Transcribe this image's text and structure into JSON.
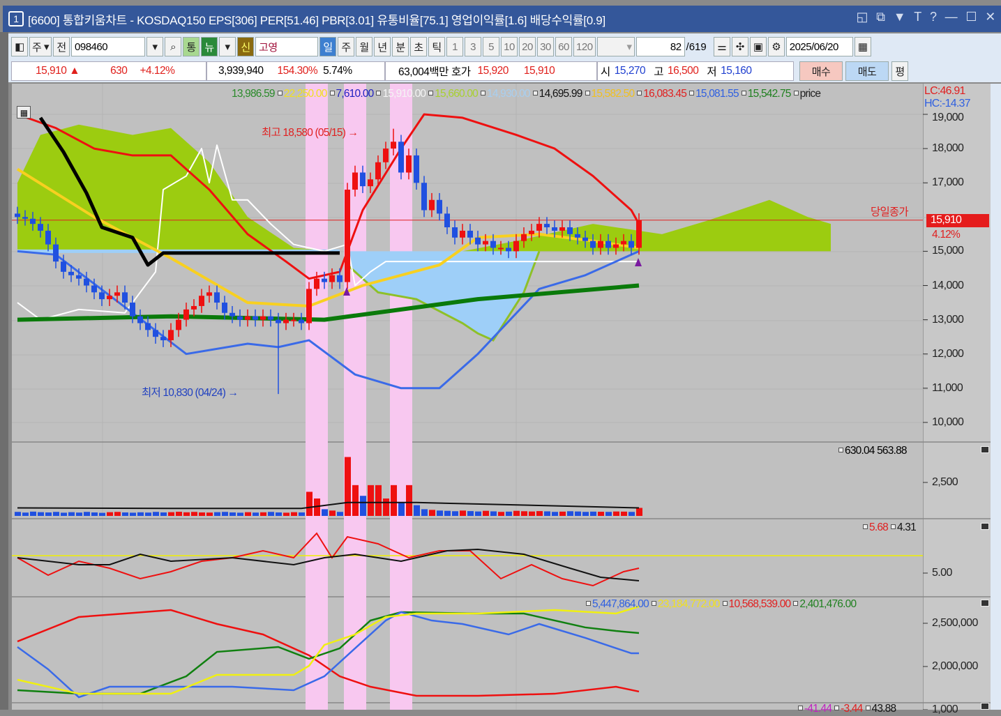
{
  "window": {
    "number": "1",
    "title": "[6600] 통합키움차트 - KOSDAQ150 EPS[306] PER[51.46] PBR[3.01] 유통비율[75.1] 영업이익률[1.6] 배당수익률[0.9]",
    "buttons": [
      "◱",
      "⧉",
      "▼",
      "T",
      "?",
      "—",
      "☐",
      "✕"
    ]
  },
  "toolbar": {
    "market": "주",
    "prev": "전",
    "code": "098460",
    "tong": "통",
    "nyu": "뉴",
    "sin": "신",
    "name": "고영",
    "periods": [
      "일",
      "주",
      "월",
      "년",
      "분",
      "초",
      "틱"
    ],
    "selected_period": "일",
    "intervals": [
      "1",
      "3",
      "5",
      "10",
      "20",
      "30",
      "60",
      "120"
    ],
    "count": "82",
    "total": "/619",
    "date": "2025/06/20"
  },
  "quote": {
    "price": "15,910 ▲",
    "change": "630",
    "pct": "+4.12%",
    "volume": "3,939,940",
    "vol_ratio": "154.30%",
    "turnover": "5.74%",
    "amount": "63,004백만",
    "hoga_label": "호가",
    "ask": "15,920",
    "bid": "15,910",
    "open_label": "시",
    "open": "15,270",
    "high_label": "고",
    "high": "16,500",
    "low_label": "저",
    "low": "15,160",
    "buy": "매수",
    "sell": "매도",
    "eval": "평"
  },
  "legend": {
    "price": [
      {
        "text": "13,986.59",
        "color": "#2a8a2a"
      },
      {
        "text": "22,250.00",
        "color": "#f0e020"
      },
      {
        "text": "7,610.00",
        "color": "#2020c0"
      },
      {
        "text": "15,910.00",
        "color": "#f4f4f4"
      },
      {
        "text": "15,660.00",
        "color": "#a8d030"
      },
      {
        "text": "14,930.00",
        "color": "#a8cff0"
      },
      {
        "text": "14,695.99",
        "color": "#111111"
      },
      {
        "text": "15,582.50",
        "color": "#f0c020"
      },
      {
        "text": "16,083.45",
        "color": "#e02020"
      },
      {
        "text": "15,081.55",
        "color": "#3060e0"
      },
      {
        "text": "15,542.75",
        "color": "#208020"
      },
      {
        "text": "price",
        "color": "#222222"
      }
    ],
    "lc": "LC:46.91",
    "hc": "HC:-14.37",
    "volume": "630.04 563.88",
    "ind2": [
      {
        "text": "5.68",
        "color": "#e02020"
      },
      {
        "text": "4.31",
        "color": "#111111"
      }
    ],
    "ind3": [
      {
        "text": "5,447,864.00",
        "color": "#3060e0"
      },
      {
        "text": "23,184,772.00",
        "color": "#f0e020"
      },
      {
        "text": "10,568,539.00",
        "color": "#e02020"
      },
      {
        "text": "2,401,476.00",
        "color": "#208020"
      }
    ],
    "ind4": [
      {
        "text": "-41.44",
        "color": "#c020c0"
      },
      {
        "text": "-3.44",
        "color": "#e02020"
      },
      {
        "text": "43.88",
        "color": "#111111"
      }
    ]
  },
  "annotations": {
    "high": "최고 18,580 (05/15) →",
    "low": "최저 10,830 (04/24) →",
    "close_label": "당일종가",
    "close_price": "15,910",
    "close_pct": "4.12%"
  },
  "axes": {
    "price": [
      "19,000",
      "18,000",
      "17,000",
      "16,000",
      "15,000",
      "14,000",
      "13,000",
      "12,000",
      "11,000",
      "10,000"
    ],
    "volume": [
      "2,500"
    ],
    "ind2": [
      "5.00"
    ],
    "ind3": [
      "2,500,000",
      "2,000,000"
    ],
    "ind4": [
      "1,000"
    ]
  },
  "chart_data": {
    "type": "candlestick",
    "ylim": [
      9700,
      19300
    ],
    "highlight_bars": [
      [
        38,
        40
      ],
      [
        43,
        45
      ],
      [
        49,
        51
      ]
    ],
    "closes": [
      16000,
      15950,
      15800,
      15600,
      15200,
      14700,
      14400,
      14300,
      14200,
      14000,
      13800,
      13600,
      13700,
      13800,
      13500,
      13100,
      12900,
      12700,
      12500,
      12400,
      12700,
      13000,
      13300,
      13400,
      13700,
      13800,
      13500,
      13200,
      13100,
      13000,
      13100,
      13000,
      13100,
      13000,
      12900,
      13000,
      13000,
      12900,
      13900,
      14200,
      14100,
      14300,
      14100,
      16800,
      17300,
      16900,
      17100,
      17600,
      18000,
      18200,
      17300,
      17800,
      17000,
      16200,
      16500,
      16100,
      15700,
      15400,
      15600,
      15400,
      15200,
      15300,
      15100,
      15100,
      15000,
      15300,
      15500,
      15600,
      15800,
      15700,
      15600,
      15700,
      15500,
      15400,
      15300,
      15100,
      15300,
      15100,
      15200,
      15300,
      15100,
      15910
    ],
    "high_point": {
      "index": 49,
      "value": 18580
    },
    "low_point": {
      "index": 34,
      "value": 10830
    },
    "volumes": [
      300,
      250,
      320,
      280,
      260,
      300,
      240,
      280,
      250,
      300,
      260,
      230,
      280,
      300,
      260,
      240,
      270,
      250,
      300,
      260,
      280,
      310,
      270,
      300,
      260,
      250,
      280,
      300,
      260,
      240,
      280,
      250,
      270,
      300,
      260,
      240,
      280,
      260,
      1800,
      1300,
      500,
      400,
      300,
      4400,
      2300,
      1500,
      2300,
      2300,
      1300,
      2300,
      1000,
      2300,
      800,
      500,
      450,
      400,
      380,
      350,
      400,
      360,
      330,
      380,
      340,
      300,
      320,
      380,
      350,
      330,
      360,
      340,
      300,
      320,
      350,
      330,
      300,
      320,
      310,
      300,
      330,
      320,
      300,
      600
    ],
    "volume_ma": [
      [
        0,
        600
      ],
      [
        20,
        560
      ],
      [
        37,
        560
      ],
      [
        43,
        1000
      ],
      [
        52,
        1000
      ],
      [
        81,
        600
      ]
    ],
    "lines": {
      "red": [
        [
          0,
          19000
        ],
        [
          5,
          18600
        ],
        [
          10,
          18000
        ],
        [
          15,
          17800
        ],
        [
          20,
          17800
        ],
        [
          25,
          16800
        ],
        [
          30,
          15500
        ],
        [
          35,
          14700
        ],
        [
          38,
          14200
        ],
        [
          42,
          14400
        ],
        [
          45,
          16200
        ],
        [
          50,
          18000
        ],
        [
          53,
          19000
        ],
        [
          58,
          18900
        ],
        [
          65,
          18400
        ],
        [
          70,
          18000
        ],
        [
          75,
          17200
        ],
        [
          80,
          16200
        ],
        [
          81,
          15800
        ]
      ],
      "yellow": [
        [
          0,
          17400
        ],
        [
          10,
          16000
        ],
        [
          20,
          14800
        ],
        [
          30,
          13500
        ],
        [
          38,
          13400
        ],
        [
          45,
          14000
        ],
        [
          55,
          14600
        ],
        [
          60,
          15400
        ],
        [
          68,
          15500
        ],
        [
          75,
          15300
        ],
        [
          81,
          15100
        ]
      ],
      "green": [
        [
          0,
          13000
        ],
        [
          20,
          13100
        ],
        [
          40,
          13000
        ],
        [
          60,
          13600
        ],
        [
          81,
          14000
        ]
      ],
      "blue": [
        [
          0,
          15000
        ],
        [
          5,
          14900
        ],
        [
          15,
          13200
        ],
        [
          22,
          12000
        ],
        [
          30,
          12300
        ],
        [
          34,
          12200
        ],
        [
          38,
          12400
        ],
        [
          44,
          11400
        ],
        [
          50,
          11000
        ],
        [
          55,
          11000
        ],
        [
          60,
          12000
        ],
        [
          68,
          13900
        ],
        [
          74,
          14300
        ],
        [
          81,
          15000
        ]
      ],
      "black": [
        [
          3,
          18900
        ],
        [
          6,
          17900
        ],
        [
          9,
          16700
        ],
        [
          11,
          15700
        ],
        [
          15,
          15400
        ],
        [
          17,
          14600
        ],
        [
          19,
          14950
        ],
        [
          42,
          14950
        ]
      ],
      "white": [
        [
          0,
          13500
        ],
        [
          3,
          13000
        ],
        [
          8,
          13300
        ],
        [
          14,
          13200
        ],
        [
          18,
          14400
        ],
        [
          19,
          16800
        ],
        [
          22,
          17200
        ],
        [
          24,
          18000
        ],
        [
          25,
          17000
        ],
        [
          26,
          18100
        ],
        [
          28,
          16500
        ],
        [
          30,
          16500
        ],
        [
          33,
          15800
        ],
        [
          36,
          15200
        ],
        [
          40,
          15000
        ],
        [
          43,
          15200
        ],
        [
          44,
          14000
        ],
        [
          46,
          14400
        ],
        [
          48,
          14700
        ],
        [
          81,
          14700
        ]
      ]
    },
    "cloud_upper": [
      [
        0,
        17000
      ],
      [
        3,
        18400
      ],
      [
        8,
        18700
      ],
      [
        15,
        18400
      ],
      [
        20,
        18600
      ],
      [
        25,
        17600
      ],
      [
        30,
        16000
      ],
      [
        36,
        15100
      ],
      [
        42,
        15000
      ],
      [
        50,
        15000
      ],
      [
        58,
        15000
      ],
      [
        65,
        15300
      ],
      [
        75,
        15800
      ],
      [
        84,
        15500
      ],
      [
        90,
        15900
      ],
      [
        98,
        16500
      ],
      [
        103,
        16000
      ],
      [
        106,
        15800
      ]
    ],
    "cloud_lower": [
      [
        43,
        14600
      ],
      [
        47,
        13800
      ],
      [
        52,
        13600
      ],
      [
        58,
        12900
      ],
      [
        60,
        12600
      ],
      [
        62,
        12400
      ],
      [
        66,
        13800
      ],
      [
        68,
        15000
      ]
    ],
    "ind2": {
      "level": 6.25,
      "red": [
        [
          0,
          6.1
        ],
        [
          4,
          4.85
        ],
        [
          8,
          5.85
        ],
        [
          12,
          5.35
        ],
        [
          16,
          4.6
        ],
        [
          20,
          5.1
        ],
        [
          24,
          5.85
        ],
        [
          28,
          6.1
        ],
        [
          32,
          6.6
        ],
        [
          36,
          6.1
        ],
        [
          39,
          7.85
        ],
        [
          41,
          6.1
        ],
        [
          43,
          7.6
        ],
        [
          47,
          7.1
        ],
        [
          51,
          6.1
        ],
        [
          55,
          6.6
        ],
        [
          59,
          6.6
        ],
        [
          63,
          4.6
        ],
        [
          67,
          5.6
        ],
        [
          71,
          4.6
        ],
        [
          75,
          4.1
        ],
        [
          79,
          5.1
        ],
        [
          81,
          5.35
        ]
      ],
      "black": [
        [
          0,
          6.1
        ],
        [
          8,
          5.6
        ],
        [
          12,
          5.6
        ],
        [
          16,
          6.35
        ],
        [
          20,
          5.85
        ],
        [
          28,
          6.1
        ],
        [
          36,
          5.6
        ],
        [
          40,
          6.1
        ],
        [
          44,
          6.35
        ],
        [
          50,
          5.85
        ],
        [
          56,
          6.6
        ],
        [
          60,
          6.7
        ],
        [
          66,
          6.35
        ],
        [
          72,
          5.35
        ],
        [
          76,
          4.7
        ],
        [
          81,
          4.45
        ]
      ]
    },
    "ind3": {
      "red": [
        [
          0,
          2290000
        ],
        [
          8,
          2573000
        ],
        [
          14,
          2613000
        ],
        [
          20,
          2653000
        ],
        [
          26,
          2492000
        ],
        [
          32,
          2371000
        ],
        [
          38,
          2129000
        ],
        [
          42,
          1887000
        ],
        [
          46,
          1766000
        ],
        [
          52,
          1661000
        ],
        [
          60,
          1661000
        ],
        [
          70,
          1685000
        ],
        [
          78,
          1766000
        ],
        [
          81,
          1710000
        ]
      ],
      "green": [
        [
          0,
          1726000
        ],
        [
          8,
          1685000
        ],
        [
          16,
          1685000
        ],
        [
          22,
          1887000
        ],
        [
          26,
          2169000
        ],
        [
          34,
          2226000
        ],
        [
          38,
          2089000
        ],
        [
          42,
          2210000
        ],
        [
          46,
          2532000
        ],
        [
          50,
          2629000
        ],
        [
          60,
          2613000
        ],
        [
          66,
          2613000
        ],
        [
          74,
          2452000
        ],
        [
          78,
          2411000
        ],
        [
          81,
          2387000
        ]
      ],
      "blue": [
        [
          0,
          2226000
        ],
        [
          4,
          1968000
        ],
        [
          8,
          1645000
        ],
        [
          12,
          1766000
        ],
        [
          20,
          1766000
        ],
        [
          28,
          1766000
        ],
        [
          36,
          1726000
        ],
        [
          40,
          1887000
        ],
        [
          44,
          2210000
        ],
        [
          48,
          2532000
        ],
        [
          50,
          2629000
        ],
        [
          54,
          2532000
        ],
        [
          58,
          2492000
        ],
        [
          64,
          2371000
        ],
        [
          68,
          2492000
        ],
        [
          74,
          2331000
        ],
        [
          80,
          2153000
        ],
        [
          81,
          2153000
        ]
      ],
      "yellow": [
        [
          0,
          1847000
        ],
        [
          8,
          1685000
        ],
        [
          14,
          1685000
        ],
        [
          20,
          1685000
        ],
        [
          26,
          1903000
        ],
        [
          36,
          1903000
        ],
        [
          38,
          2008000
        ],
        [
          40,
          2250000
        ],
        [
          44,
          2371000
        ],
        [
          48,
          2573000
        ],
        [
          52,
          2613000
        ],
        [
          60,
          2613000
        ],
        [
          70,
          2653000
        ],
        [
          78,
          2613000
        ],
        [
          81,
          2694000
        ]
      ]
    }
  }
}
